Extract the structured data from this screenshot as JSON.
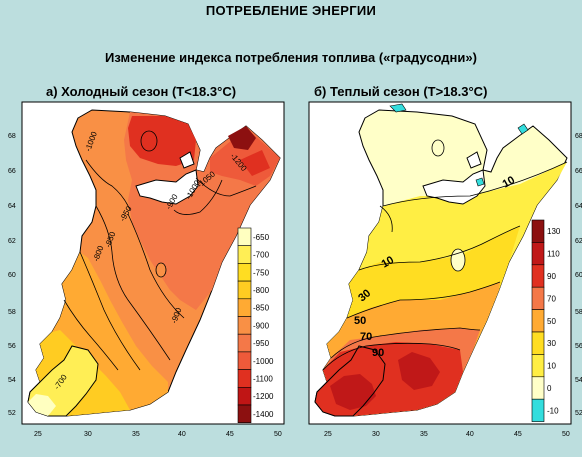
{
  "title": "ПОТРЕБЛЕНИЕ ЭНЕРГИИ",
  "subtitle": "Изменение индекса потребления топлива («градусодни»)",
  "panels": [
    {
      "title": "а) Холодный сезон (T<18.3°C)",
      "x_ticks": [
        "25",
        "30",
        "35",
        "40",
        "45",
        "50"
      ],
      "y_ticks": [
        "52",
        "54",
        "56",
        "58",
        "60",
        "62",
        "64",
        "66",
        "68"
      ],
      "legend": [
        {
          "label": "-650",
          "color": "#ffffc0"
        },
        {
          "label": "-700",
          "color": "#ffee55"
        },
        {
          "label": "-750",
          "color": "#ffdd22"
        },
        {
          "label": "-800",
          "color": "#ffcc22"
        },
        {
          "label": "-850",
          "color": "#ffaa33"
        },
        {
          "label": "-900",
          "color": "#f99045"
        },
        {
          "label": "-950",
          "color": "#f47848"
        },
        {
          "label": "-1000",
          "color": "#ee5a3a"
        },
        {
          "label": "-1100",
          "color": "#e03020"
        },
        {
          "label": "-1200",
          "color": "#c01515"
        },
        {
          "label": "-1400",
          "color": "#8c1010"
        }
      ],
      "contour_labels": [
        "-650",
        "-700",
        "-800",
        "-850",
        "-900",
        "-950",
        "-1000",
        "-1050",
        "-1100",
        "-1200"
      ]
    },
    {
      "title": "б) Теплый сезон (T>18.3°C)",
      "x_ticks": [
        "25",
        "30",
        "35",
        "40",
        "45",
        "50"
      ],
      "y_ticks": [
        "52",
        "54",
        "56",
        "58",
        "60",
        "62",
        "64",
        "66",
        "68"
      ],
      "legend": [
        {
          "label": "130",
          "color": "#8c1010"
        },
        {
          "label": "110",
          "color": "#c01818"
        },
        {
          "label": "90",
          "color": "#e03020"
        },
        {
          "label": "70",
          "color": "#f47848"
        },
        {
          "label": "50",
          "color": "#ffaa33"
        },
        {
          "label": "30",
          "color": "#ffdd22"
        },
        {
          "label": "10",
          "color": "#ffee44"
        },
        {
          "label": "0",
          "color": "#ffffc8"
        },
        {
          "label": "-10",
          "color": "#33dddd"
        }
      ],
      "contour_labels": [
        "10",
        "10",
        "10",
        "30",
        "50",
        "70",
        "90"
      ]
    }
  ]
}
